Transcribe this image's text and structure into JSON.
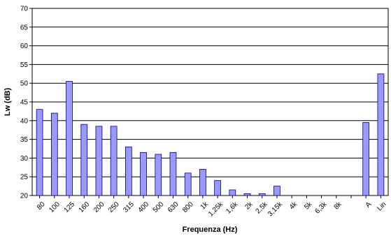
{
  "chart_data": {
    "type": "bar",
    "title": "",
    "xlabel": "Frequenza (Hz)",
    "ylabel": "Lw (dB)",
    "ylim": [
      20,
      70
    ],
    "ytick_step": 5,
    "yticks": [
      "20",
      "25",
      "30",
      "35",
      "40",
      "45",
      "50",
      "55",
      "60",
      "65",
      "70"
    ],
    "grid": true,
    "legend": "none",
    "bar_color": "#9999ff",
    "bar_edge_color": "#000080",
    "categories": [
      "80",
      "100",
      "125",
      "160",
      "200",
      "250",
      "315",
      "400",
      "500",
      "630",
      "800",
      "1k",
      "1,25k",
      "1,6k",
      "2k",
      "2,5k",
      "3,15k",
      "4k",
      "5k",
      "6,3k",
      "8k",
      "",
      "A",
      "Lin"
    ],
    "values": [
      43,
      42,
      50.5,
      39,
      38.5,
      38.5,
      33,
      31.5,
      31,
      31.5,
      26,
      27,
      24,
      21.5,
      20.5,
      20.5,
      22.5,
      null,
      null,
      null,
      null,
      null,
      39.5,
      52.5
    ]
  }
}
